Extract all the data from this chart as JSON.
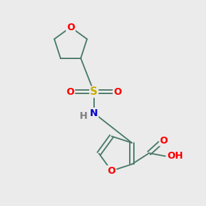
{
  "background_color": "#ebebeb",
  "bond_color": "#4a7a6a",
  "O_color": "#ff0000",
  "S_color": "#ccaa00",
  "N_color": "#0000cc",
  "H_color": "#808080",
  "lw": 1.4,
  "fs": 10,
  "xlim": [
    0,
    10
  ],
  "ylim": [
    0,
    10
  ]
}
